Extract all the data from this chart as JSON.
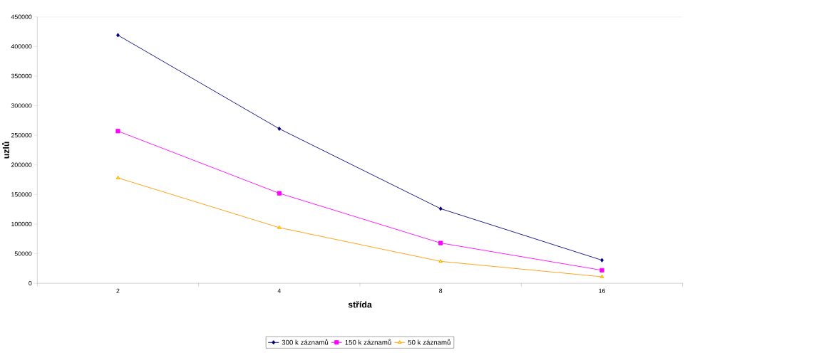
{
  "chart_data": {
    "type": "line",
    "xlabel": "střída",
    "ylabel": "uzlů",
    "categories": [
      "2",
      "4",
      "8",
      "16"
    ],
    "series": [
      {
        "name": "300 k záznamů",
        "color": "#000080",
        "marker": "diamond",
        "values": [
          419000,
          261000,
          126000,
          39000
        ]
      },
      {
        "name": "150 k záznamů",
        "color": "#ff00ff",
        "marker": "square",
        "values": [
          257000,
          152000,
          68000,
          22000
        ]
      },
      {
        "name": "50 k záznamů",
        "color": "#ff9900",
        "marker": "triangle",
        "values": [
          178000,
          94000,
          37000,
          11000
        ]
      }
    ],
    "ylim": [
      0,
      450000
    ],
    "yticks": [
      0,
      50000,
      100000,
      150000,
      200000,
      250000,
      300000,
      350000,
      400000,
      450000
    ],
    "grid": false,
    "legend": "bottom"
  }
}
